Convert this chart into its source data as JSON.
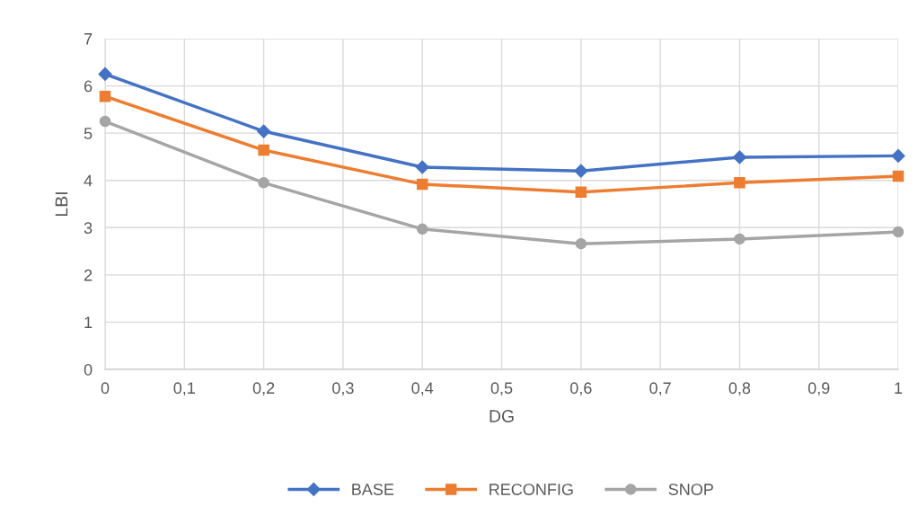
{
  "chart_data": {
    "type": "line",
    "xlabel": "DG",
    "ylabel": "LBI",
    "x": [
      0,
      0.2,
      0.4,
      0.6,
      0.8,
      1
    ],
    "series": [
      {
        "name": "BASE",
        "color": "#4472c4",
        "marker": "diamond",
        "values": [
          6.25,
          5.04,
          4.28,
          4.2,
          4.49,
          4.52
        ]
      },
      {
        "name": "RECONFIG",
        "color": "#ed7d31",
        "marker": "square",
        "values": [
          5.78,
          4.64,
          3.92,
          3.75,
          3.95,
          4.09
        ]
      },
      {
        "name": "SNOP",
        "color": "#a5a5a5",
        "marker": "circle",
        "values": [
          5.25,
          3.95,
          2.97,
          2.66,
          2.76,
          2.91
        ]
      }
    ],
    "xlim": [
      0,
      1
    ],
    "xticks": [
      0,
      {
        "value": 0.1,
        "label": "0,1"
      },
      {
        "value": 0.2,
        "label": "0,2"
      },
      {
        "value": 0.3,
        "label": "0,3"
      },
      {
        "value": 0.4,
        "label": "0,4"
      },
      {
        "value": 0.5,
        "label": "0,5"
      },
      {
        "value": 0.6,
        "label": "0,6"
      },
      {
        "value": 0.7,
        "label": "0,7"
      },
      {
        "value": 0.8,
        "label": "0,8"
      },
      {
        "value": 0.9,
        "label": "0,9"
      },
      1
    ],
    "ylim": [
      0,
      7
    ],
    "yticks": [
      0,
      1,
      2,
      3,
      4,
      5,
      6,
      7
    ],
    "grid": true,
    "legend": "bottom",
    "line_style": "solid"
  }
}
